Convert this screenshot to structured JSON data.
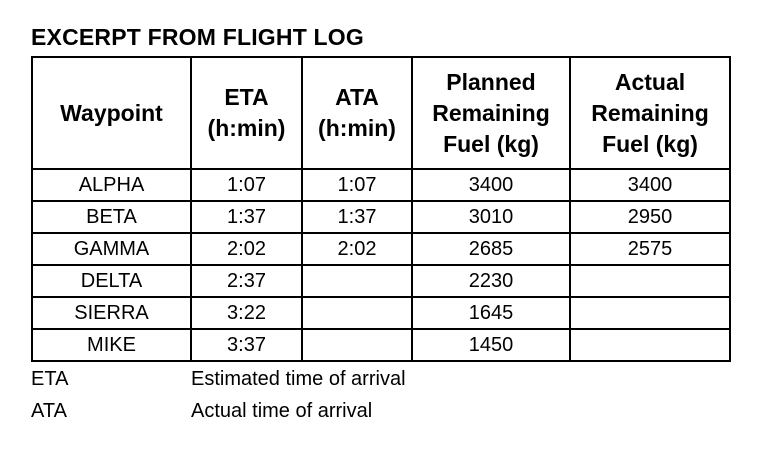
{
  "title": "EXCERPT FROM FLIGHT LOG",
  "table": {
    "headers": [
      {
        "lines": [
          "Waypoint"
        ]
      },
      {
        "lines": [
          "ETA",
          "(h:min)"
        ]
      },
      {
        "lines": [
          "ATA",
          "(h:min)"
        ]
      },
      {
        "lines": [
          "Planned",
          "Remaining",
          "Fuel (kg)"
        ]
      },
      {
        "lines": [
          "Actual",
          "Remaining",
          "Fuel (kg)"
        ]
      }
    ],
    "rows": [
      [
        "ALPHA",
        "1:07",
        "1:07",
        "3400",
        "3400"
      ],
      [
        "BETA",
        "1:37",
        "1:37",
        "3010",
        "2950"
      ],
      [
        "GAMMA",
        "2:02",
        "2:02",
        "2685",
        "2575"
      ],
      [
        "DELTA",
        "2:37",
        "",
        "2230",
        ""
      ],
      [
        "SIERRA",
        "3:22",
        "",
        "1645",
        ""
      ],
      [
        "MIKE",
        "3:37",
        "",
        "1450",
        ""
      ]
    ]
  },
  "legend": [
    {
      "abbr": "ETA",
      "desc": "Estimated time of arrival"
    },
    {
      "abbr": "ATA",
      "desc": "Actual time of arrival"
    }
  ]
}
